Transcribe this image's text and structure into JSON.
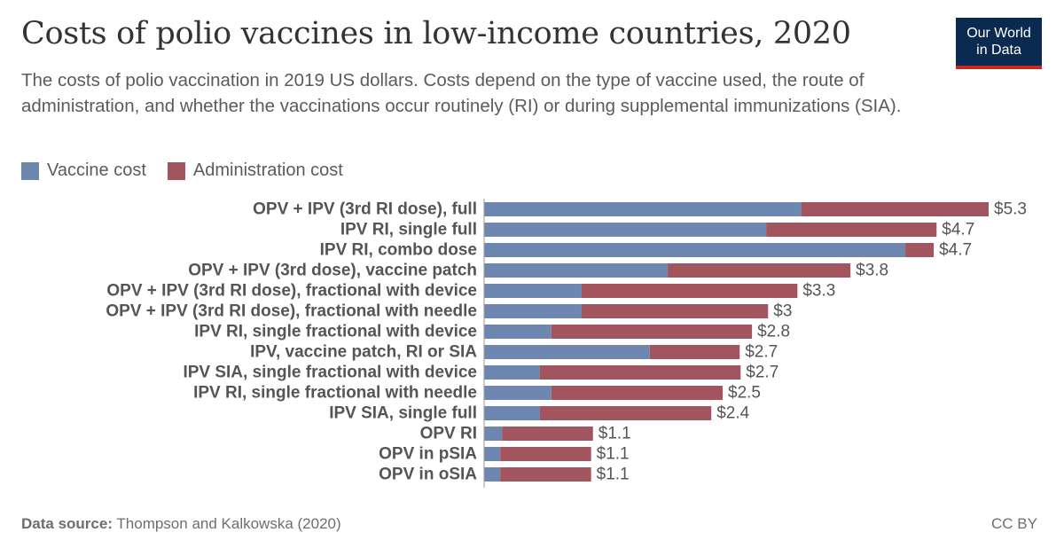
{
  "header": {
    "title": "Costs of polio vaccines in low-income countries, 2020",
    "subtitle": "The costs of polio vaccination in 2019 US dollars. Costs depend on the type of vaccine used, the route of administration, and whether the vaccinations occur routinely (RI) or during supplemental immunizations (SIA).",
    "logo_line1": "Our World",
    "logo_line2": "in Data"
  },
  "colors": {
    "vaccine": "#6d87b1",
    "administration": "#a2545f",
    "logo_bg": "#0a2a4f",
    "logo_accent": "#ce261e"
  },
  "chart_data": {
    "type": "bar",
    "orientation": "horizontal",
    "stacked": true,
    "categories": [
      "OPV + IPV (3rd RI dose), full",
      "IPV RI, single full",
      "IPV RI, combo dose",
      "OPV + IPV (3rd dose), vaccine patch",
      "OPV + IPV (3rd RI dose), fractional with device",
      "OPV + IPV (3rd RI dose), fractional with needle",
      "IPV RI, single fractional with device",
      "IPV, vaccine patch, RI or SIA",
      "IPV SIA, single fractional with device",
      "IPV RI, single fractional with needle",
      "IPV SIA, single full",
      "OPV RI",
      "OPV in pSIA",
      "OPV in oSIA"
    ],
    "series": [
      {
        "name": "Vaccine cost",
        "values": [
          3.35,
          2.98,
          4.45,
          1.94,
          1.03,
          1.03,
          0.71,
          1.75,
          0.59,
          0.71,
          0.59,
          0.19,
          0.17,
          0.17
        ]
      },
      {
        "name": "Administration cost",
        "values": [
          1.98,
          1.8,
          0.3,
          1.93,
          2.28,
          1.97,
          2.12,
          0.95,
          2.12,
          1.81,
          1.81,
          0.96,
          0.96,
          0.96
        ]
      }
    ],
    "totals_labels": [
      "$5.3",
      "$4.7",
      "$4.7",
      "$3.8",
      "$3.3",
      "$3",
      "$2.8",
      "$2.7",
      "$2.7",
      "$2.5",
      "$2.4",
      "$1.1",
      "$1.1",
      "$1.1"
    ],
    "xlim": [
      0,
      5.33
    ],
    "legend_position": "top-left",
    "grid": false
  },
  "footer": {
    "source_label": "Data source:",
    "source_text": " Thompson and Kalkowska (2020)",
    "license": "CC BY"
  }
}
